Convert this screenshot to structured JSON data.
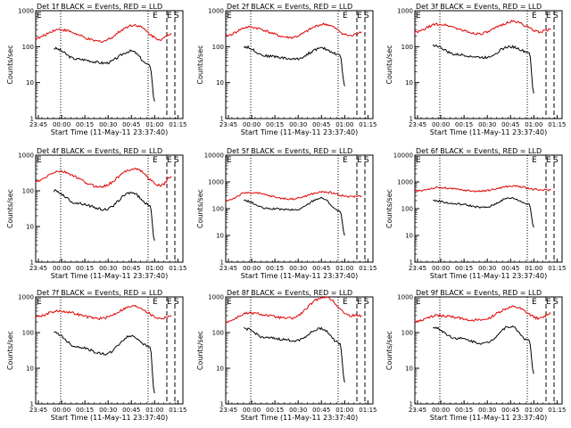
{
  "colors": {
    "events": "#000000",
    "lld": "#e00000",
    "background": "#ffffff"
  },
  "chart_data": [
    {
      "type": "line",
      "title": "Det 1f BLACK = Events, RED = LLD",
      "xlabel": "Start Time (11-May-11 23:37:40)",
      "ylabel": "Counts/sec",
      "yscale": "log",
      "ylim": [
        1,
        1000
      ],
      "yticks": [
        "1",
        "10",
        "100",
        "1000"
      ],
      "xticks": [
        "23:45",
        "00:00",
        "00:15",
        "00:30",
        "00:45",
        "01:00",
        "01:15"
      ],
      "markers": [
        "E",
        "E",
        "S"
      ],
      "series": [
        {
          "name": "Events",
          "color": "#000000",
          "values": [
            {
              "t": "23:55",
              "y": 90
            },
            {
              "t": "00:10",
              "y": 45
            },
            {
              "t": "00:28",
              "y": 35
            },
            {
              "t": "00:45",
              "y": 75
            },
            {
              "t": "00:57",
              "y": 30
            },
            {
              "t": "01:00",
              "y": 3
            }
          ]
        },
        {
          "name": "LLD",
          "color": "#e00000",
          "values": [
            {
              "t": "23:43",
              "y": 170
            },
            {
              "t": "23:58",
              "y": 300
            },
            {
              "t": "00:25",
              "y": 140
            },
            {
              "t": "00:47",
              "y": 400
            },
            {
              "t": "01:04",
              "y": 160
            },
            {
              "t": "01:11",
              "y": 230
            }
          ]
        }
      ]
    },
    {
      "type": "line",
      "title": "Det 2f BLACK = Events, RED = LLD",
      "xlabel": "Start Time (11-May-11 23:37:40)",
      "ylabel": "Counts/sec",
      "yscale": "log",
      "ylim": [
        1,
        1000
      ],
      "yticks": [
        "1",
        "10",
        "100",
        "1000"
      ],
      "xticks": [
        "23:45",
        "00:00",
        "00:15",
        "00:30",
        "00:45",
        "01:00",
        "01:15"
      ],
      "markers": [
        "E",
        "E",
        "S"
      ],
      "series": [
        {
          "name": "Events",
          "color": "#000000",
          "values": [
            {
              "t": "23:55",
              "y": 100
            },
            {
              "t": "00:10",
              "y": 55
            },
            {
              "t": "00:28",
              "y": 45
            },
            {
              "t": "00:45",
              "y": 90
            },
            {
              "t": "00:57",
              "y": 60
            },
            {
              "t": "01:00",
              "y": 8
            }
          ]
        },
        {
          "name": "LLD",
          "color": "#e00000",
          "values": [
            {
              "t": "23:43",
              "y": 200
            },
            {
              "t": "23:58",
              "y": 350
            },
            {
              "t": "00:25",
              "y": 180
            },
            {
              "t": "00:47",
              "y": 420
            },
            {
              "t": "01:04",
              "y": 200
            },
            {
              "t": "01:11",
              "y": 260
            }
          ]
        }
      ]
    },
    {
      "type": "line",
      "title": "Det 3f BLACK = Events, RED = LLD",
      "xlabel": "Start Time (11-May-11 23:37:40)",
      "ylabel": "Counts/sec",
      "yscale": "log",
      "ylim": [
        1,
        1000
      ],
      "yticks": [
        "1",
        "10",
        "100",
        "1000"
      ],
      "xticks": [
        "23:45",
        "00:00",
        "00:15",
        "00:30",
        "00:45",
        "01:00",
        "01:15"
      ],
      "markers": [
        "E",
        "E",
        "S"
      ],
      "series": [
        {
          "name": "Events",
          "color": "#000000",
          "values": [
            {
              "t": "23:55",
              "y": 110
            },
            {
              "t": "00:10",
              "y": 60
            },
            {
              "t": "00:28",
              "y": 50
            },
            {
              "t": "00:45",
              "y": 100
            },
            {
              "t": "00:57",
              "y": 70
            },
            {
              "t": "01:00",
              "y": 5
            }
          ]
        },
        {
          "name": "LLD",
          "color": "#e00000",
          "values": [
            {
              "t": "23:43",
              "y": 250
            },
            {
              "t": "23:58",
              "y": 420
            },
            {
              "t": "00:25",
              "y": 230
            },
            {
              "t": "00:47",
              "y": 500
            },
            {
              "t": "01:04",
              "y": 260
            },
            {
              "t": "01:11",
              "y": 300
            }
          ]
        }
      ]
    },
    {
      "type": "line",
      "title": "Det 4f BLACK = Events, RED = LLD",
      "xlabel": "Start Time (11-May-11 23:37:40)",
      "ylabel": "Counts/sec",
      "yscale": "log",
      "ylim": [
        1,
        1000
      ],
      "yticks": [
        "1",
        "10",
        "100",
        "1000"
      ],
      "xticks": [
        "23:45",
        "00:00",
        "00:15",
        "00:30",
        "00:45",
        "01:00",
        "01:15"
      ],
      "markers": [
        "E",
        "E",
        "S"
      ],
      "series": [
        {
          "name": "Events",
          "color": "#000000",
          "values": [
            {
              "t": "23:55",
              "y": 100
            },
            {
              "t": "00:10",
              "y": 45
            },
            {
              "t": "00:28",
              "y": 30
            },
            {
              "t": "00:45",
              "y": 90
            },
            {
              "t": "00:57",
              "y": 40
            },
            {
              "t": "01:00",
              "y": 4
            }
          ]
        },
        {
          "name": "LLD",
          "color": "#e00000",
          "values": [
            {
              "t": "23:43",
              "y": 180
            },
            {
              "t": "23:58",
              "y": 350
            },
            {
              "t": "00:25",
              "y": 130
            },
            {
              "t": "00:47",
              "y": 420
            },
            {
              "t": "01:04",
              "y": 140
            },
            {
              "t": "01:11",
              "y": 250
            }
          ]
        }
      ]
    },
    {
      "type": "line",
      "title": "Det 5f BLACK = Events, RED = LLD",
      "xlabel": "Start Time (11-May-11 23:37:40)",
      "ylabel": "Counts/sec",
      "yscale": "log",
      "ylim": [
        1,
        10000
      ],
      "yticks": [
        "1",
        "10",
        "100",
        "1000",
        "10000"
      ],
      "xticks": [
        "23:45",
        "00:00",
        "00:15",
        "00:30",
        "00:45",
        "01:00",
        "01:15"
      ],
      "markers": [
        "E",
        "E",
        "S"
      ],
      "series": [
        {
          "name": "Events",
          "color": "#000000",
          "values": [
            {
              "t": "23:55",
              "y": 200
            },
            {
              "t": "00:10",
              "y": 100
            },
            {
              "t": "00:28",
              "y": 90
            },
            {
              "t": "00:45",
              "y": 250
            },
            {
              "t": "00:57",
              "y": 80
            },
            {
              "t": "01:00",
              "y": 10
            }
          ]
        },
        {
          "name": "LLD",
          "color": "#e00000",
          "values": [
            {
              "t": "23:43",
              "y": 200
            },
            {
              "t": "23:58",
              "y": 400
            },
            {
              "t": "00:25",
              "y": 230
            },
            {
              "t": "00:47",
              "y": 420
            },
            {
              "t": "01:04",
              "y": 280
            },
            {
              "t": "01:11",
              "y": 300
            }
          ]
        }
      ]
    },
    {
      "type": "line",
      "title": "Det 6f BLACK = Events, RED = LLD",
      "xlabel": "Start Time (11-May-11 23:37:40)",
      "ylabel": "Counts/sec",
      "yscale": "log",
      "ylim": [
        1,
        10000
      ],
      "yticks": [
        "1",
        "10",
        "100",
        "1000",
        "10000"
      ],
      "xticks": [
        "23:45",
        "00:00",
        "00:15",
        "00:30",
        "00:45",
        "01:00",
        "01:15"
      ],
      "markers": [
        "E",
        "E",
        "S"
      ],
      "series": [
        {
          "name": "Events",
          "color": "#000000",
          "values": [
            {
              "t": "23:55",
              "y": 200
            },
            {
              "t": "00:10",
              "y": 150
            },
            {
              "t": "00:28",
              "y": 110
            },
            {
              "t": "00:45",
              "y": 250
            },
            {
              "t": "00:57",
              "y": 150
            },
            {
              "t": "01:00",
              "y": 20
            }
          ]
        },
        {
          "name": "LLD",
          "color": "#e00000",
          "values": [
            {
              "t": "23:43",
              "y": 450
            },
            {
              "t": "23:58",
              "y": 600
            },
            {
              "t": "00:25",
              "y": 450
            },
            {
              "t": "00:47",
              "y": 700
            },
            {
              "t": "01:04",
              "y": 500
            },
            {
              "t": "01:11",
              "y": 500
            }
          ]
        }
      ]
    },
    {
      "type": "line",
      "title": "Det 7f BLACK = Events, RED = LLD",
      "xlabel": "Start Time (11-May-11 23:37:40)",
      "ylabel": "Counts/sec",
      "yscale": "log",
      "ylim": [
        1,
        1000
      ],
      "yticks": [
        "1",
        "10",
        "100",
        "1000"
      ],
      "xticks": [
        "23:45",
        "00:00",
        "00:15",
        "00:30",
        "00:45",
        "01:00",
        "01:15"
      ],
      "markers": [
        "E",
        "E",
        "S"
      ],
      "series": [
        {
          "name": "Events",
          "color": "#000000",
          "values": [
            {
              "t": "23:55",
              "y": 100
            },
            {
              "t": "00:10",
              "y": 40
            },
            {
              "t": "00:28",
              "y": 25
            },
            {
              "t": "00:45",
              "y": 80
            },
            {
              "t": "00:57",
              "y": 40
            },
            {
              "t": "01:00",
              "y": 2
            }
          ]
        },
        {
          "name": "LLD",
          "color": "#e00000",
          "values": [
            {
              "t": "23:43",
              "y": 280
            },
            {
              "t": "23:58",
              "y": 400
            },
            {
              "t": "00:25",
              "y": 250
            },
            {
              "t": "00:47",
              "y": 550
            },
            {
              "t": "01:04",
              "y": 250
            },
            {
              "t": "01:11",
              "y": 300
            }
          ]
        }
      ]
    },
    {
      "type": "line",
      "title": "Det 8f BLACK = Events, RED = LLD",
      "xlabel": "Start Time (11-May-11 23:37:40)",
      "ylabel": "Counts/sec",
      "yscale": "log",
      "ylim": [
        1,
        1000
      ],
      "yticks": [
        "1",
        "10",
        "100",
        "1000"
      ],
      "xticks": [
        "23:45",
        "00:00",
        "00:15",
        "00:30",
        "00:45",
        "01:00",
        "01:15"
      ],
      "markers": [
        "E",
        "E",
        "S"
      ],
      "series": [
        {
          "name": "Events",
          "color": "#000000",
          "values": [
            {
              "t": "23:55",
              "y": 130
            },
            {
              "t": "00:10",
              "y": 70
            },
            {
              "t": "00:28",
              "y": 60
            },
            {
              "t": "00:45",
              "y": 130
            },
            {
              "t": "00:57",
              "y": 50
            },
            {
              "t": "01:00",
              "y": 4
            }
          ]
        },
        {
          "name": "LLD",
          "color": "#e00000",
          "values": [
            {
              "t": "23:43",
              "y": 200
            },
            {
              "t": "23:58",
              "y": 350
            },
            {
              "t": "00:25",
              "y": 250
            },
            {
              "t": "00:47",
              "y": 1000
            },
            {
              "t": "01:04",
              "y": 300
            },
            {
              "t": "01:11",
              "y": 300
            }
          ]
        }
      ]
    },
    {
      "type": "line",
      "title": "Det 9f BLACK = Events, RED = LLD",
      "xlabel": "Start Time (11-May-11 23:37:40)",
      "ylabel": "Counts/sec",
      "yscale": "log",
      "ylim": [
        1,
        1000
      ],
      "yticks": [
        "1",
        "10",
        "100",
        "1000"
      ],
      "xticks": [
        "23:45",
        "00:00",
        "00:15",
        "00:30",
        "00:45",
        "01:00",
        "01:15"
      ],
      "markers": [
        "E",
        "E",
        "S"
      ],
      "series": [
        {
          "name": "Events",
          "color": "#000000",
          "values": [
            {
              "t": "23:55",
              "y": 140
            },
            {
              "t": "00:10",
              "y": 70
            },
            {
              "t": "00:28",
              "y": 50
            },
            {
              "t": "00:45",
              "y": 150
            },
            {
              "t": "00:57",
              "y": 60
            },
            {
              "t": "01:00",
              "y": 7
            }
          ]
        },
        {
          "name": "LLD",
          "color": "#e00000",
          "values": [
            {
              "t": "23:43",
              "y": 200
            },
            {
              "t": "23:58",
              "y": 300
            },
            {
              "t": "00:25",
              "y": 220
            },
            {
              "t": "00:47",
              "y": 520
            },
            {
              "t": "01:04",
              "y": 250
            },
            {
              "t": "01:11",
              "y": 350
            }
          ]
        }
      ]
    }
  ]
}
